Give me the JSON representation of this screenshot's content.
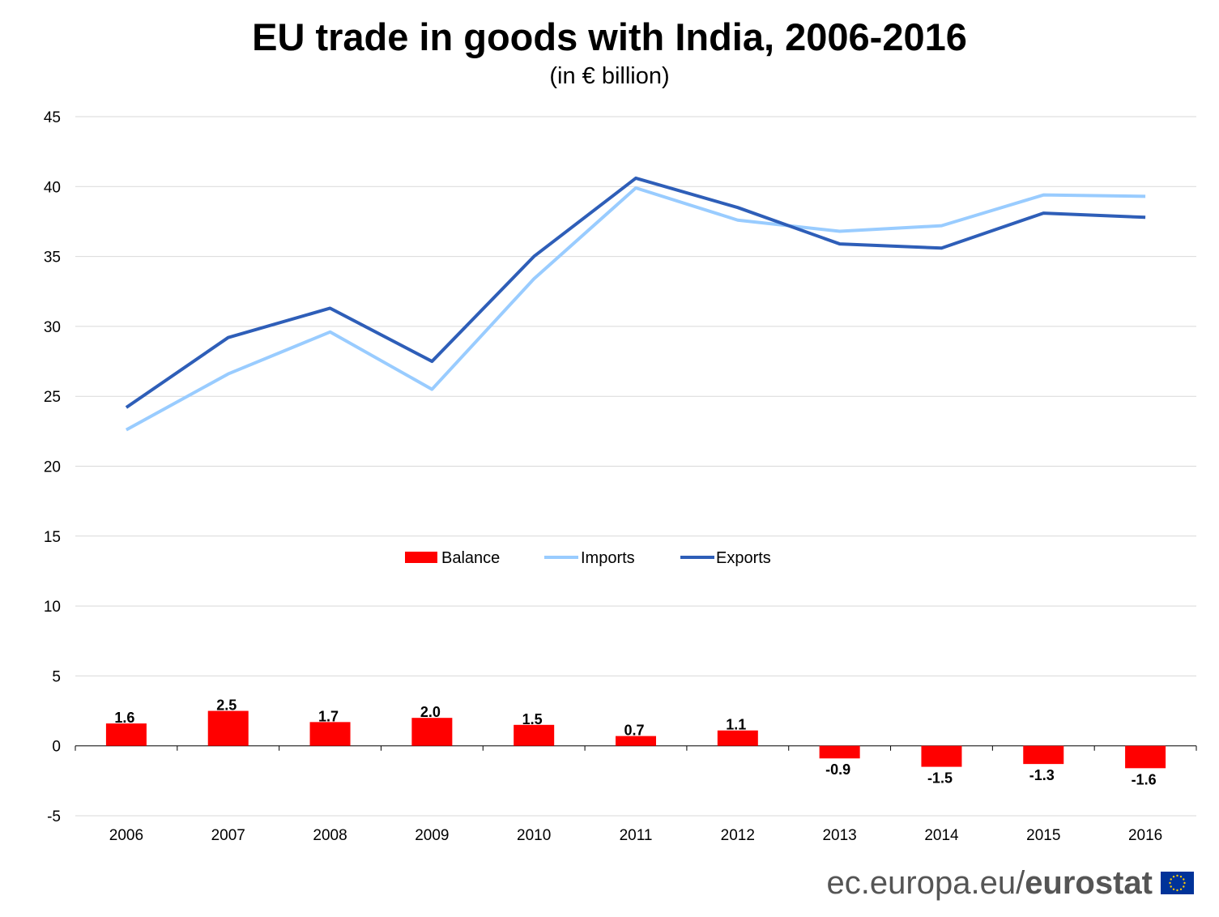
{
  "chart_data": {
    "type": "bar",
    "title": "EU trade in goods with India, 2006-2016",
    "subtitle": "(in € billion)",
    "categories": [
      "2006",
      "2007",
      "2008",
      "2009",
      "2010",
      "2011",
      "2012",
      "2013",
      "2014",
      "2015",
      "2016"
    ],
    "ylim": [
      -5,
      45
    ],
    "yticks": [
      -5,
      0,
      5,
      10,
      15,
      20,
      25,
      30,
      35,
      40,
      45
    ],
    "grid": true,
    "legend_position": "center",
    "series": [
      {
        "name": "Balance",
        "type": "bar",
        "color": "#ff0000",
        "values": [
          1.6,
          2.5,
          1.7,
          2.0,
          1.5,
          0.7,
          1.1,
          -0.9,
          -1.5,
          -1.3,
          -1.6
        ],
        "labels": [
          "1.6",
          "2.5",
          "1.7",
          "2.0",
          "1.5",
          "0.7",
          "1.1",
          "-0.9",
          "-1.5",
          "-1.3",
          "-1.6"
        ]
      },
      {
        "name": "Imports",
        "type": "line",
        "color": "#99ccff",
        "values": [
          22.6,
          26.6,
          29.6,
          25.5,
          33.4,
          39.9,
          37.6,
          36.8,
          37.2,
          39.4,
          39.3
        ]
      },
      {
        "name": "Exports",
        "type": "line",
        "color": "#2e5eb8",
        "values": [
          24.2,
          29.2,
          31.3,
          27.5,
          35.0,
          40.6,
          38.5,
          35.9,
          35.6,
          38.1,
          37.8
        ]
      }
    ]
  },
  "footer": {
    "prefix": "ec.europa.eu/",
    "brand": "eurostat"
  },
  "icons": {
    "flag": "eu-flag-icon"
  }
}
